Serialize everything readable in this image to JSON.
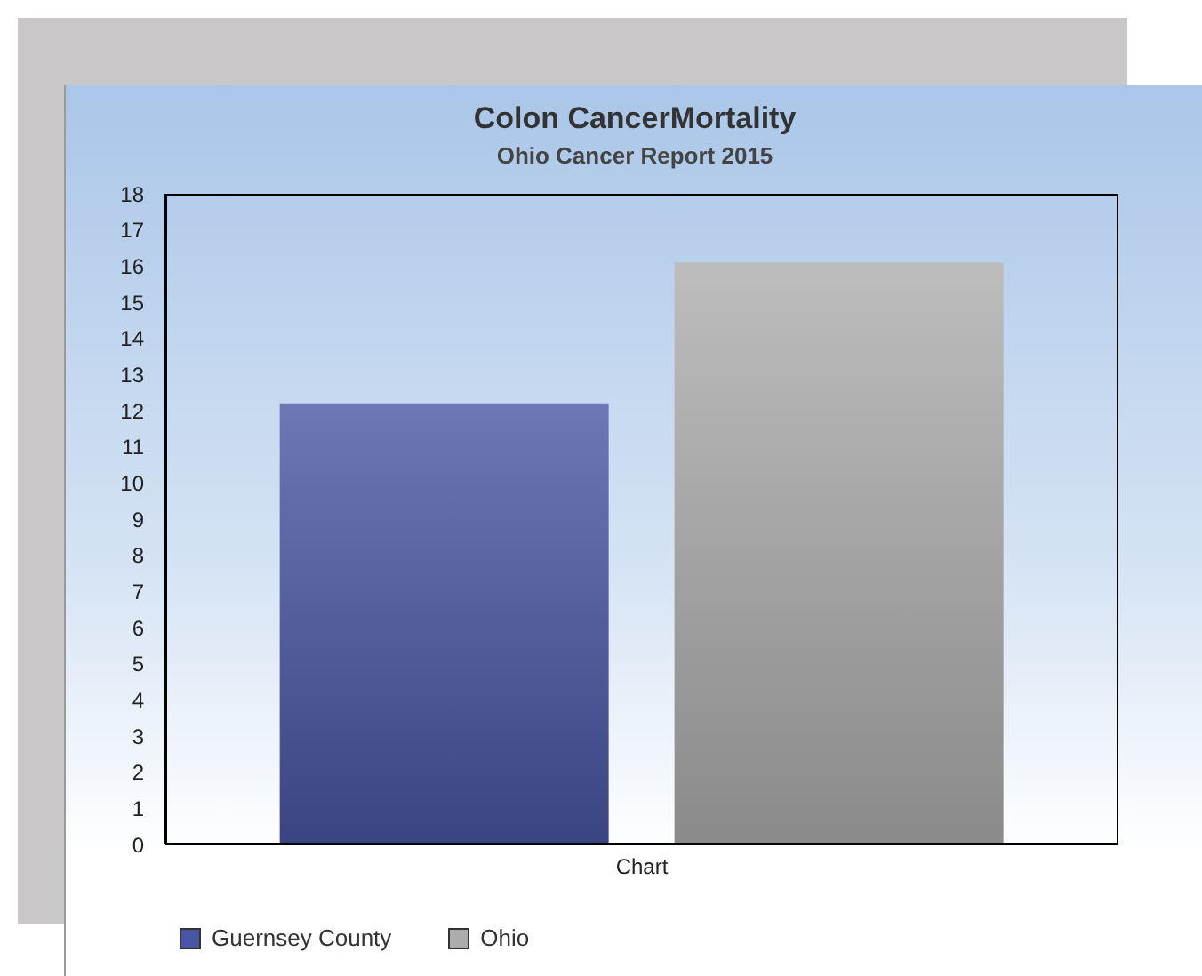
{
  "chart_data": {
    "type": "bar",
    "title": "Colon CancerMortality",
    "subtitle": "Ohio Cancer Report 2015",
    "categories": [
      "Chart"
    ],
    "series": [
      {
        "name": "Guernsey County",
        "color": "#4855a4",
        "values": [
          12.2
        ]
      },
      {
        "name": "Ohio",
        "color": "#acacac",
        "values": [
          16.1
        ]
      }
    ],
    "ylim": [
      0,
      18
    ],
    "yticks": [
      0,
      1,
      2,
      3,
      4,
      5,
      6,
      7,
      8,
      9,
      10,
      11,
      12,
      13,
      14,
      15,
      16,
      17,
      18
    ],
    "legend": "bottom left"
  }
}
